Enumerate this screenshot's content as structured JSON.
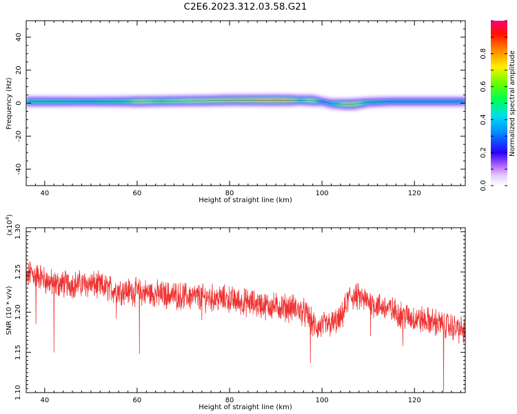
{
  "title": "C2E6.2023.312.03.58.G21",
  "colors": {
    "snr_line": "#ee3333",
    "axis": "#000000"
  },
  "chart_data": [
    {
      "type": "heatmap",
      "xlabel": "Height of straight line (km)",
      "ylabel": "Frequency (Hz)",
      "xlim": [
        36,
        131
      ],
      "ylim": [
        -50,
        50
      ],
      "xticks": [
        40,
        60,
        80,
        100,
        120
      ],
      "yticks": [
        40,
        20,
        0,
        -20,
        -40
      ],
      "band": {
        "x": [
          36,
          40,
          50,
          58,
          60,
          65,
          75,
          80,
          85,
          90,
          93,
          95,
          98,
          100,
          102,
          105,
          107,
          110,
          115,
          120,
          125,
          131
        ],
        "center_hz": [
          1.0,
          1.0,
          1.0,
          1.0,
          1.0,
          1.2,
          1.5,
          1.8,
          1.8,
          1.8,
          1.8,
          1.8,
          1.6,
          1.0,
          -0.3,
          -0.7,
          -0.6,
          0.5,
          1.0,
          1.0,
          1.0,
          1.0
        ],
        "peak": [
          0.55,
          0.55,
          0.5,
          0.6,
          0.75,
          0.65,
          0.75,
          0.8,
          0.85,
          0.95,
          0.85,
          0.6,
          0.75,
          0.4,
          0.5,
          0.75,
          0.8,
          0.5,
          0.45,
          0.45,
          0.45,
          0.45
        ]
      },
      "colorbar": {
        "label": "Normalized spectral amplitude",
        "ticks": [
          "0.0",
          "0.2",
          "0.4",
          "0.6",
          "0.8"
        ],
        "range": [
          0,
          1
        ]
      }
    },
    {
      "type": "line",
      "xlabel": "Height of straight line (km)",
      "ylabel": "SNR (10 * v/v)",
      "yunit": "(x10^4)",
      "xlim": [
        36,
        131
      ],
      "ylim": [
        1.1,
        1.305
      ],
      "xticks": [
        40,
        60,
        80,
        100,
        120
      ],
      "yticks": [
        "1.30",
        "1.25",
        "1.20",
        "1.15",
        "1.10"
      ],
      "series": [
        {
          "x": [
            36,
            37,
            38,
            39,
            40,
            42,
            45,
            48,
            50,
            52,
            55,
            58,
            60,
            62,
            65,
            68,
            70,
            72,
            75,
            78,
            80,
            82,
            84,
            86,
            88,
            90,
            92,
            94,
            96,
            97,
            98,
            99,
            100,
            102,
            104,
            105,
            106,
            108,
            110,
            112,
            114,
            116,
            118,
            120,
            122,
            124,
            126,
            128,
            130,
            131
          ],
          "y": [
            1.24,
            1.25,
            1.245,
            1.245,
            1.24,
            1.235,
            1.235,
            1.235,
            1.235,
            1.232,
            1.228,
            1.226,
            1.225,
            1.224,
            1.222,
            1.221,
            1.22,
            1.219,
            1.218,
            1.217,
            1.216,
            1.213,
            1.212,
            1.21,
            1.208,
            1.207,
            1.206,
            1.205,
            1.2,
            1.195,
            1.185,
            1.18,
            1.183,
            1.185,
            1.19,
            1.205,
            1.22,
            1.218,
            1.213,
            1.208,
            1.205,
            1.2,
            1.195,
            1.192,
            1.19,
            1.188,
            1.185,
            1.182,
            1.178,
            1.175
          ]
        }
      ],
      "spikes": [
        {
          "x": 38.1,
          "y": 1.185
        },
        {
          "x": 42.0,
          "y": 1.15
        },
        {
          "x": 55.5,
          "y": 1.192
        },
        {
          "x": 60.5,
          "y": 1.148
        },
        {
          "x": 74.0,
          "y": 1.19
        },
        {
          "x": 97.5,
          "y": 1.137
        },
        {
          "x": 110.5,
          "y": 1.17
        },
        {
          "x": 117.5,
          "y": 1.158
        },
        {
          "x": 126.3,
          "y": 1.101
        }
      ]
    }
  ]
}
